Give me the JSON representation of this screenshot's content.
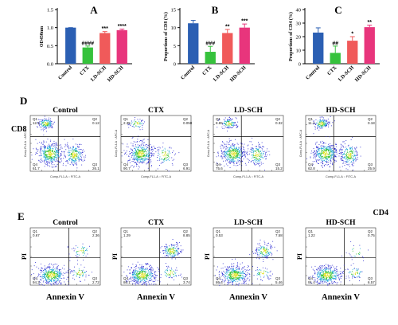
{
  "panels": {
    "A": "A",
    "B": "B",
    "C": "C",
    "D": "D",
    "E": "E"
  },
  "colors": {
    "Control": "#2b5fb3",
    "CTX": "#36c23c",
    "LD-SCH": "#f05a5a",
    "HD-SCH": "#e8357c"
  },
  "chart_data": [
    {
      "type": "bar",
      "panel": "A",
      "title": "",
      "xlabel": "",
      "ylabel": "OD450nm",
      "categories": [
        "Control",
        "CTX",
        "LD-SCH",
        "HD-SCH"
      ],
      "values": [
        1.0,
        0.45,
        0.85,
        0.93
      ],
      "errors": [
        0.0,
        0.04,
        0.04,
        0.03
      ],
      "significance": [
        "",
        "####",
        "***",
        "****"
      ],
      "ylim": [
        0.0,
        1.5
      ],
      "yticks": [
        "0.0",
        "0.5",
        "1.0",
        "1.5"
      ]
    },
    {
      "type": "bar",
      "panel": "B",
      "title": "",
      "xlabel": "",
      "ylabel": "Proportions of CD8 (%)",
      "categories": [
        "Control",
        "CTX",
        "LD-SCH",
        "HD-SCH"
      ],
      "values": [
        11.2,
        3.3,
        8.5,
        10.0
      ],
      "errors": [
        0.8,
        1.5,
        1.0,
        1.0
      ],
      "significance": [
        "",
        "###",
        "**",
        "***"
      ],
      "ylim": [
        0,
        15
      ],
      "yticks": [
        "0",
        "5",
        "10",
        "15"
      ]
    },
    {
      "type": "bar",
      "panel": "C",
      "title": "",
      "xlabel": "",
      "ylabel": "Proportions of CD4 (%)",
      "categories": [
        "Control",
        "CTX",
        "LD-SCH",
        "HD-SCH"
      ],
      "values": [
        23,
        8,
        17,
        27
      ],
      "errors": [
        3.5,
        5.0,
        3.0,
        1.5
      ],
      "significance": [
        "",
        "##",
        "*",
        "**"
      ],
      "ylim": [
        0,
        40
      ],
      "yticks": [
        "0",
        "10",
        "20",
        "30",
        "40"
      ]
    },
    {
      "type": "scatter",
      "panel": "D",
      "row_label_y": "CD8",
      "row_label_x": "CD4",
      "inner_xlabel": "Comp-FL1-A :: FITC-A",
      "inner_ylabel": "Comp-FL4-A :: APC-A",
      "groups": [
        {
          "name": "Control",
          "q1": "12.1",
          "q2": "0.12",
          "q3": "26.1",
          "q4": "61.7"
        },
        {
          "name": "CTX",
          "q1": "2.35",
          "q2": "0.058",
          "q3": "6.91",
          "q4": "90.7"
        },
        {
          "name": "LD-SCH",
          "q1": "8.85",
          "q2": "0.32",
          "q3": "15.2",
          "q4": "75.6"
        },
        {
          "name": "HD-SCH",
          "q1": "11.1",
          "q2": "0.18",
          "q3": "25.9",
          "q4": "62.8"
        }
      ]
    },
    {
      "type": "scatter",
      "panel": "E",
      "row_label_y": "PI",
      "row_label_x": "Annexin V",
      "groups": [
        {
          "name": "Control",
          "q1": "0.67",
          "q2": "2.36",
          "q3": "2.72",
          "q4": "94.3"
        },
        {
          "name": "CTX",
          "q1": "1.29",
          "q2": "8.85",
          "q3": "3.74",
          "q4": "86.1"
        },
        {
          "name": "LD-SCH",
          "q1": "0.53",
          "q2": "7.58",
          "q3": "5.46",
          "q4": "86.4"
        },
        {
          "name": "HD-SCH",
          "q1": "1.22",
          "q2": "0.75",
          "q3": "6.57",
          "q4": "91.4"
        }
      ]
    }
  ]
}
